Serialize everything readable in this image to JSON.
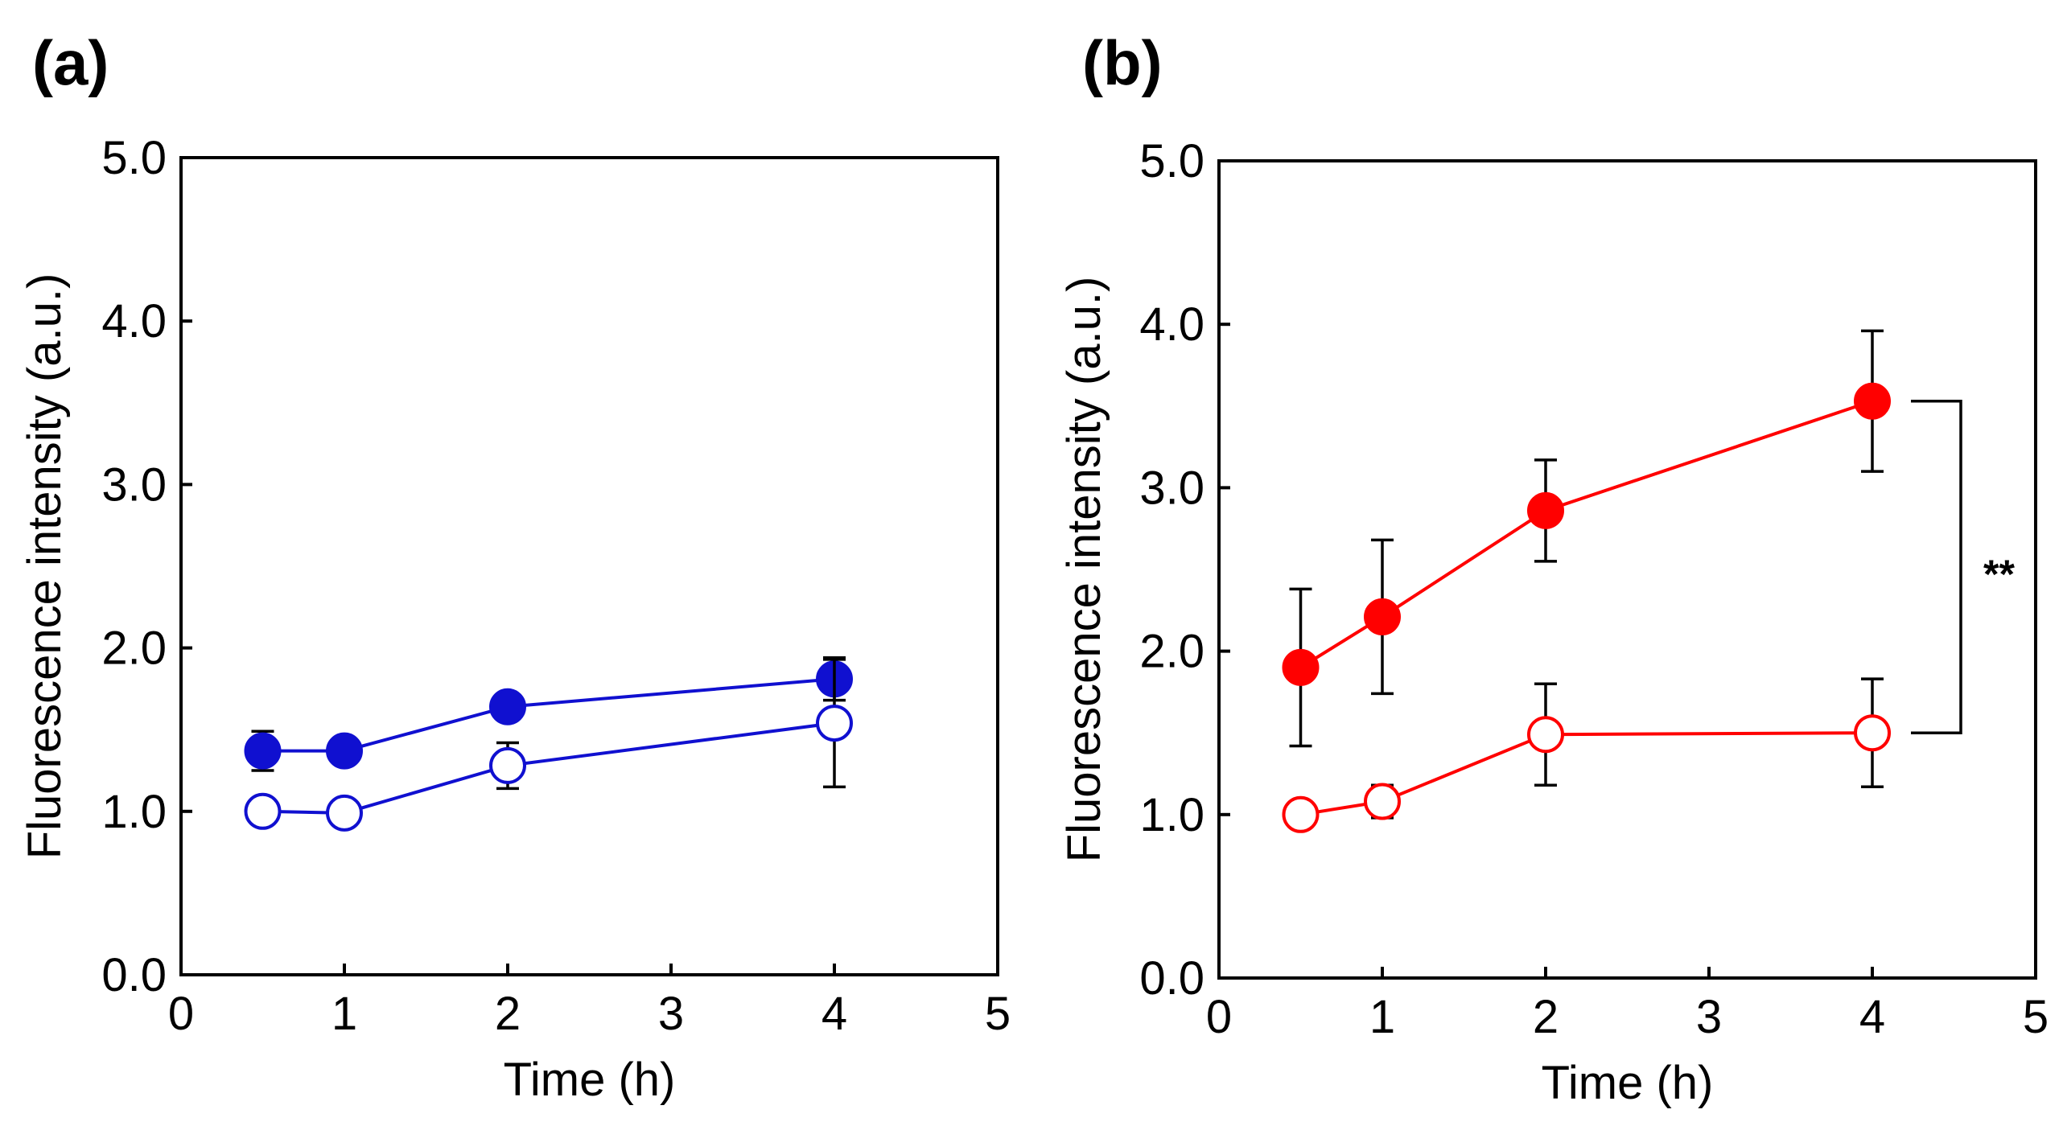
{
  "chart_data": [
    {
      "panel": "(a)",
      "type": "line",
      "xlabel": "Time (h)",
      "ylabel": "Fluorescence intensity (a.u.)",
      "xlim": [
        0,
        5
      ],
      "ylim": [
        0,
        5
      ],
      "xticks": [
        "0",
        "1",
        "2",
        "3",
        "4",
        "5"
      ],
      "yticks": [
        "0.0",
        "1.0",
        "2.0",
        "3.0",
        "4.0",
        "5.0"
      ],
      "color": "#1010d0",
      "series": [
        {
          "name": "filled",
          "marker": "filled",
          "x": [
            0.5,
            1,
            2,
            4
          ],
          "y": [
            1.37,
            1.37,
            1.64,
            1.81
          ],
          "err": [
            0.12,
            0.0,
            0.0,
            0.13
          ]
        },
        {
          "name": "open",
          "marker": "open",
          "x": [
            0.5,
            1,
            2,
            4
          ],
          "y": [
            1.0,
            0.99,
            1.28,
            1.54
          ],
          "err": [
            0.0,
            0.0,
            0.14,
            0.39
          ]
        }
      ]
    },
    {
      "panel": "(b)",
      "type": "line",
      "xlabel": "Time (h)",
      "ylabel": "Fluorescence intensity (a.u.)",
      "xlim": [
        0,
        5
      ],
      "ylim": [
        0,
        5
      ],
      "xticks": [
        "0",
        "1",
        "2",
        "3",
        "4",
        "5"
      ],
      "yticks": [
        "0.0",
        "1.0",
        "2.0",
        "3.0",
        "4.0",
        "5.0"
      ],
      "color": "#ff0000",
      "significance": "**",
      "series": [
        {
          "name": "filled",
          "marker": "filled",
          "x": [
            0.5,
            1,
            2,
            4
          ],
          "y": [
            1.9,
            2.21,
            2.86,
            3.53
          ],
          "err": [
            0.48,
            0.47,
            0.31,
            0.43
          ]
        },
        {
          "name": "open",
          "marker": "open",
          "x": [
            0.5,
            1,
            2,
            4
          ],
          "y": [
            1.0,
            1.08,
            1.49,
            1.5
          ],
          "err": [
            0.0,
            0.1,
            0.31,
            0.33
          ]
        }
      ]
    }
  ]
}
